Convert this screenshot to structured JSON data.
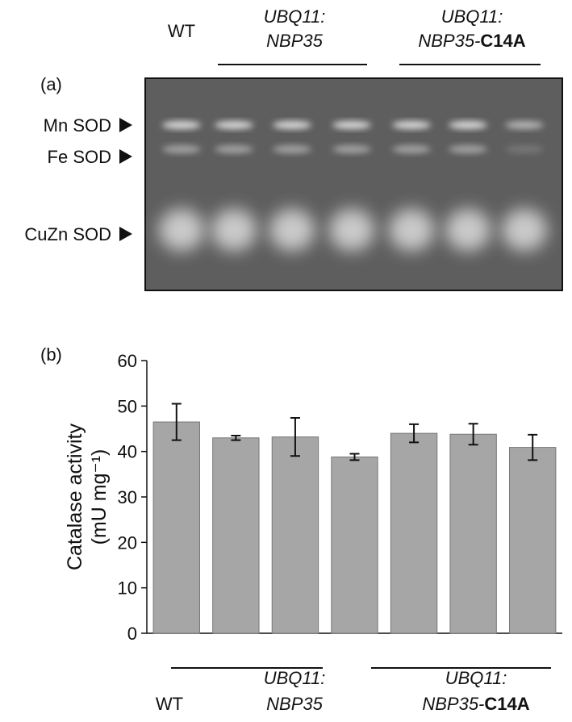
{
  "panel_a": {
    "label": "(a)",
    "groups": [
      {
        "line1": "WT"
      },
      {
        "line1": "UBQ11:",
        "line2": "NBP35"
      },
      {
        "line1": "UBQ11:",
        "line2": "NBP35-",
        "line2_bold": "C14A"
      }
    ],
    "bands": [
      "Mn SOD",
      "Fe SOD",
      "CuZn SOD"
    ]
  },
  "chart_data": {
    "type": "bar",
    "panel_label": "(b)",
    "y_label": [
      "Catalase activity",
      "(mU mg⁻¹)"
    ],
    "categories": [
      null,
      null,
      null,
      null,
      null,
      null,
      null
    ],
    "values": [
      46.5,
      43,
      43.2,
      38.8,
      44,
      43.8,
      40.9
    ],
    "errors": [
      4,
      0.5,
      4.2,
      0.7,
      2,
      2.3,
      2.8
    ],
    "color": "#a6a6a6",
    "ylim": [
      0,
      60
    ],
    "yticks": [
      0,
      10,
      20,
      30,
      40,
      50,
      60
    ],
    "groups": [
      {
        "line1": "WT"
      },
      {
        "line1": "UBQ11:",
        "line2": "NBP35"
      },
      {
        "line1": "UBQ11:",
        "line2": "NBP35-",
        "line2_bold": "C14A"
      }
    ]
  }
}
